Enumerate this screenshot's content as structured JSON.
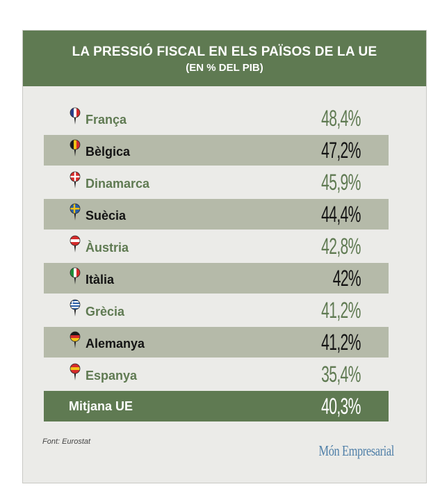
{
  "chart_data": {
    "type": "table",
    "title": "LA PRESSIÓ FISCAL EN ELS PAÏSOS DE LA UE",
    "subtitle": "(EN % DEL PIB)",
    "rows": [
      {
        "country": "França",
        "value": "48,4%",
        "flag": [
          "#2b3f8c",
          "#ffffff",
          "#d52b2b"
        ],
        "dir": "v"
      },
      {
        "country": "Bèlgica",
        "value": "47,2%",
        "flag": [
          "#1a1a1a",
          "#f2c316",
          "#d52b2b"
        ],
        "dir": "v"
      },
      {
        "country": "Dinamarca",
        "value": "45,9%",
        "flag": "cross-dk",
        "dir": "x"
      },
      {
        "country": "Suècia",
        "value": "44,4%",
        "flag": "cross-se",
        "dir": "x"
      },
      {
        "country": "Àustria",
        "value": "42,8%",
        "flag": [
          "#d52b2b",
          "#ffffff",
          "#d52b2b"
        ],
        "dir": "h"
      },
      {
        "country": "Itàlia",
        "value": "42%",
        "flag": [
          "#1f8f3a",
          "#ffffff",
          "#d52b2b"
        ],
        "dir": "v"
      },
      {
        "country": "Grècia",
        "value": "41,2%",
        "flag": "stripes-gr",
        "dir": "g"
      },
      {
        "country": "Alemanya",
        "value": "41,2%",
        "flag": [
          "#1a1a1a",
          "#d52b2b",
          "#f2c316"
        ],
        "dir": "h"
      },
      {
        "country": "Espanya",
        "value": "35,4%",
        "flag": [
          "#d52b2b",
          "#f2c316",
          "#d52b2b"
        ],
        "dir": "h"
      }
    ],
    "average": {
      "label": "Mitjana UE",
      "value": "40,3%"
    }
  },
  "footer": {
    "source": "Font: Eurostat",
    "brand": "Món Empresarial"
  },
  "colors": {
    "accent_green": "#5f7a52",
    "band": "#b5baa9",
    "background": "#ebebe8"
  }
}
